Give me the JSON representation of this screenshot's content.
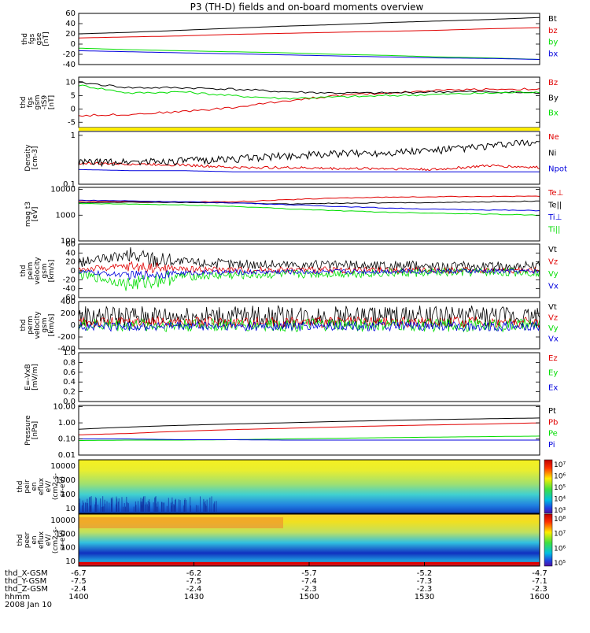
{
  "title": "P3 (TH-D) fields and on-board moments overview",
  "colors": {
    "black": "#000000",
    "red": "#e00000",
    "green": "#00dd00",
    "blue": "#0000dd",
    "yellow": "#ffee00"
  },
  "chart_data": [
    {
      "type": "line",
      "ylabel": [
        "thd",
        "fgs",
        "gse",
        "[nT]"
      ],
      "ylim": [
        -40,
        60
      ],
      "yticks": [
        60,
        40,
        20,
        0,
        -20,
        -40
      ],
      "scale": "linear",
      "series": [
        {
          "name": "Bt",
          "color": "black",
          "values": [
            20,
            23,
            27,
            31,
            35,
            38,
            42,
            45,
            48,
            52
          ]
        },
        {
          "name": "bz",
          "color": "red",
          "values": [
            12,
            14,
            16,
            19,
            21,
            23,
            25,
            27,
            30,
            32
          ]
        },
        {
          "name": "by",
          "color": "green",
          "values": [
            -8,
            -11,
            -13,
            -15,
            -17,
            -20,
            -22,
            -25,
            -27,
            -30
          ]
        },
        {
          "name": "bx",
          "color": "blue",
          "values": [
            -13,
            -15,
            -17,
            -19,
            -21,
            -23,
            -25,
            -27,
            -28,
            -30
          ]
        }
      ]
    },
    {
      "type": "line",
      "ylabel": [
        "thd",
        "fgs",
        "gsm",
        "-tS9",
        "[nT]"
      ],
      "ylim": [
        -7,
        12
      ],
      "yticks": [
        10,
        5,
        0,
        -5
      ],
      "scale": "linear",
      "series": [
        {
          "name": "Bz",
          "color": "red",
          "values": [
            -2.5,
            -2,
            -1,
            0.5,
            3,
            5,
            6,
            7,
            7.5,
            7.5
          ]
        },
        {
          "name": "By",
          "color": "black",
          "values": [
            10,
            8,
            8,
            7.5,
            6.5,
            6,
            6,
            6.5,
            6.5,
            6
          ]
        },
        {
          "name": "Bx",
          "color": "green",
          "values": [
            9,
            6,
            6.5,
            5,
            4,
            4.5,
            5,
            5.5,
            6,
            6.5
          ]
        }
      ]
    },
    {
      "type": "line",
      "ylabel": [
        "Density",
        "[cm-3]"
      ],
      "ylim": [
        0.1,
        1.2
      ],
      "yticks": [
        1.0,
        0.1
      ],
      "scale": "log",
      "series": [
        {
          "name": "Ne",
          "color": "red",
          "values": [
            0.27,
            0.26,
            0.25,
            0.22,
            0.22,
            0.21,
            0.21,
            0.2,
            0.24,
            0.22
          ]
        },
        {
          "name": "Ni",
          "color": "black",
          "values": [
            0.28,
            0.29,
            0.3,
            0.33,
            0.38,
            0.42,
            0.45,
            0.5,
            0.6,
            0.75
          ]
        },
        {
          "name": "Npot",
          "color": "blue",
          "values": [
            0.2,
            0.19,
            0.19,
            0.18,
            0.18,
            0.18,
            0.18,
            0.18,
            0.18,
            0.18
          ]
        }
      ]
    },
    {
      "type": "line",
      "ylabel": [
        "mag t3",
        "[eV]"
      ],
      "ylim": [
        100,
        12000
      ],
      "yticks": [
        10000,
        1000,
        100
      ],
      "scale": "log",
      "series": [
        {
          "name": "Te⊥",
          "color": "red",
          "values": [
            3500,
            3400,
            3300,
            3300,
            3900,
            4600,
            5000,
            5200,
            5400,
            5400
          ]
        },
        {
          "name": "Te||",
          "color": "black",
          "values": [
            3000,
            3200,
            3100,
            3000,
            2700,
            2900,
            3000,
            3100,
            3300,
            3500
          ]
        },
        {
          "name": "Ti⊥",
          "color": "blue",
          "values": [
            3800,
            3600,
            3300,
            3000,
            2600,
            2200,
            1900,
            1700,
            1600,
            1500
          ]
        },
        {
          "name": "Ti||",
          "color": "green",
          "values": [
            2800,
            2700,
            2500,
            2200,
            1800,
            1500,
            1300,
            1200,
            1100,
            1000
          ]
        }
      ]
    },
    {
      "type": "line",
      "ylabel": [
        "thd",
        "peim",
        "velocity",
        "gsm",
        "[km/s]"
      ],
      "ylim": [
        -60,
        60
      ],
      "yticks": [
        60,
        40,
        20,
        0,
        -20,
        -40,
        -60
      ],
      "scale": "linear",
      "series": [
        {
          "name": "Vt",
          "color": "black",
          "values": [
            18,
            35,
            20,
            15,
            14,
            12,
            12,
            10,
            10,
            10
          ]
        },
        {
          "name": "Vz",
          "color": "red",
          "values": [
            3,
            10,
            4,
            2,
            2,
            2,
            1,
            1,
            1,
            1
          ]
        },
        {
          "name": "Vy",
          "color": "green",
          "values": [
            -8,
            -30,
            -12,
            -10,
            -8,
            -6,
            -5,
            -4,
            -3,
            -3
          ]
        },
        {
          "name": "Vx",
          "color": "blue",
          "values": [
            -2,
            -10,
            -5,
            -3,
            -2,
            -2,
            -1,
            -1,
            -1,
            -1
          ]
        }
      ]
    },
    {
      "type": "line",
      "ylabel": [
        "thd",
        "perm",
        "velocity",
        "gsm",
        "[km/s]"
      ],
      "ylim": [
        -400,
        400
      ],
      "yticks": [
        400,
        200,
        0,
        -200,
        -400
      ],
      "scale": "linear",
      "series": [
        {
          "name": "Vt",
          "color": "black",
          "values": [
            150,
            150,
            150,
            150,
            150,
            150,
            150,
            150,
            150,
            150
          ]
        },
        {
          "name": "Vz",
          "color": "red",
          "values": [
            50,
            50,
            50,
            50,
            50,
            50,
            50,
            50,
            50,
            50
          ]
        },
        {
          "name": "Vy",
          "color": "green",
          "values": [
            0,
            0,
            0,
            0,
            0,
            0,
            0,
            0,
            0,
            0
          ]
        },
        {
          "name": "Vx",
          "color": "blue",
          "values": [
            -20,
            -20,
            -20,
            -20,
            -20,
            -20,
            -20,
            -20,
            -20,
            -20
          ]
        }
      ]
    },
    {
      "type": "line",
      "ylabel": [
        "E=-VxB",
        "[mV/m]"
      ],
      "ylim": [
        0,
        1
      ],
      "yticks": [
        "1.0",
        "0.8",
        "0.6",
        "0.4",
        "0.2",
        "0.0"
      ],
      "scale": "linear",
      "series": [
        {
          "name": "Ez",
          "color": "red",
          "values": []
        },
        {
          "name": "Ey",
          "color": "green",
          "values": []
        },
        {
          "name": "Ex",
          "color": "blue",
          "values": []
        }
      ]
    },
    {
      "type": "line",
      "ylabel": [
        "Pressure",
        "[nPa]"
      ],
      "ylim": [
        0.01,
        12
      ],
      "yticks": [
        "10.00",
        "1.00",
        "0.10",
        "0.01"
      ],
      "scale": "log",
      "series": [
        {
          "name": "Pt",
          "color": "black",
          "values": [
            0.4,
            0.55,
            0.7,
            0.85,
            1.0,
            1.2,
            1.4,
            1.6,
            1.8,
            2.0
          ]
        },
        {
          "name": "Pb",
          "color": "red",
          "values": [
            0.18,
            0.22,
            0.3,
            0.38,
            0.45,
            0.55,
            0.65,
            0.75,
            0.85,
            1.0
          ]
        },
        {
          "name": "Pe",
          "color": "green",
          "values": [
            0.08,
            0.085,
            0.085,
            0.09,
            0.1,
            0.11,
            0.12,
            0.13,
            0.14,
            0.15
          ]
        },
        {
          "name": "Pi",
          "color": "blue",
          "values": [
            0.1,
            0.1,
            0.09,
            0.09,
            0.085,
            0.085,
            0.085,
            0.085,
            0.085,
            0.085
          ]
        }
      ]
    },
    {
      "type": "heatmap",
      "ylabel": [
        "thd",
        "peir",
        "en",
        "eflux",
        "eV/",
        "(cm2-s-",
        "sr-eV)"
      ],
      "yticks": [
        "10000",
        "1000",
        "100",
        "10"
      ],
      "colorbar": {
        "ticks": [
          "10⁷",
          "10⁶",
          "10⁵",
          "10⁴",
          "10³"
        ]
      }
    },
    {
      "type": "heatmap",
      "ylabel": [
        "thd",
        "peer",
        "en",
        "eflux",
        "eV/",
        "(cm2-s-",
        "sr-eV)"
      ],
      "yticks": [
        "10000",
        "1000",
        "100",
        "10"
      ],
      "colorbar": {
        "ticks": [
          "10⁸",
          "10⁷",
          "10⁶",
          "10⁵"
        ]
      }
    }
  ],
  "xaxis": {
    "rows": [
      {
        "label": "thd_X-GSM",
        "values": [
          "-6.7",
          "-6.2",
          "-5.7",
          "-5.2",
          "-4.7"
        ]
      },
      {
        "label": "thd_Y-GSM",
        "values": [
          "-7.5",
          "-7.5",
          "-7.4",
          "-7.3",
          "-7.1"
        ]
      },
      {
        "label": "thd_Z-GSM",
        "values": [
          "-2.4",
          "-2.4",
          "-2.3",
          "-2.3",
          "-2.3"
        ]
      },
      {
        "label": "hhmm",
        "values": [
          "1400",
          "1430",
          "1500",
          "1530",
          "1600"
        ]
      }
    ],
    "date": "2008 Jan 10"
  }
}
